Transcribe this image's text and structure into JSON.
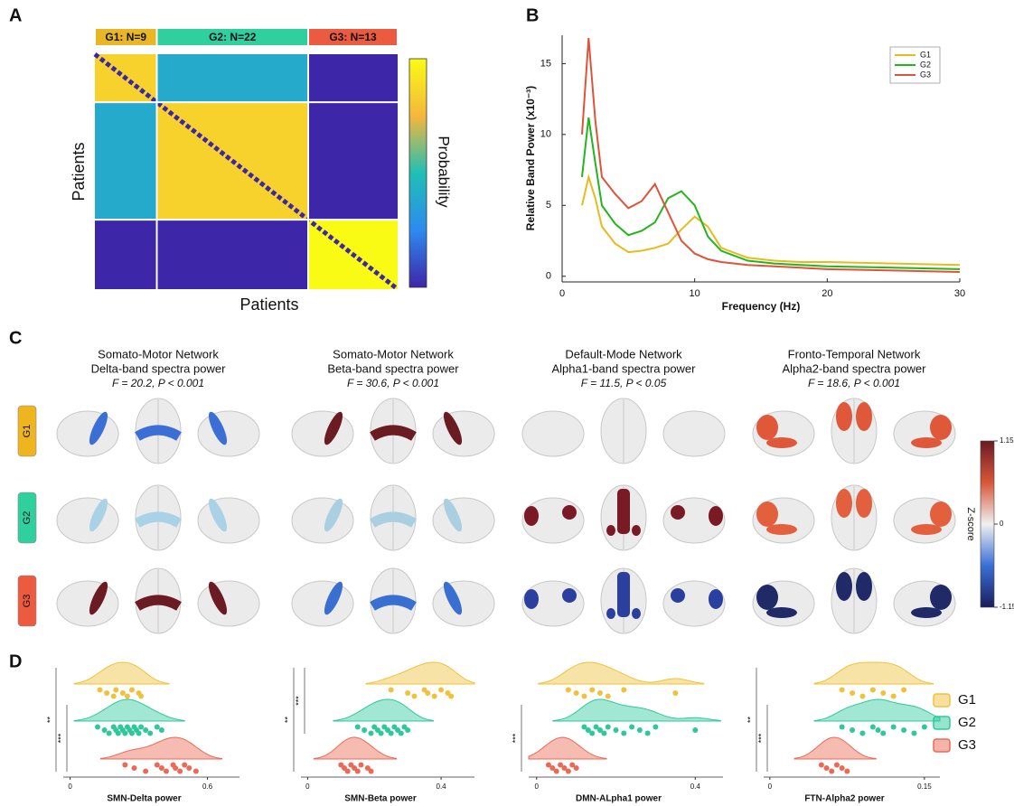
{
  "panel_labels": [
    "A",
    "B",
    "C",
    "D"
  ],
  "chart_data": [
    {
      "type": "heatmap",
      "groups": [
        {
          "label": "G1: N=9",
          "size": 9,
          "color": "#e9b726"
        },
        {
          "label": "G2: N=22",
          "size": 22,
          "color": "#2fcf9e"
        },
        {
          "label": "G3: N=13",
          "size": 13,
          "color": "#ec5a40"
        }
      ],
      "matrix": [
        [
          0.85,
          0.4,
          0
        ],
        [
          0.4,
          0.85,
          0
        ],
        [
          0,
          0,
          1
        ]
      ],
      "colormap": [
        "#3e26a8",
        "#2d8bef",
        "#20bfb5",
        "#f5b73b",
        "#f9fb15"
      ],
      "x_label": "Patients",
      "y_label": "Patients",
      "colorbar_label": "Probability"
    },
    {
      "type": "line",
      "x": [
        1.5,
        2,
        2.5,
        3,
        4,
        5,
        6,
        7,
        8,
        9,
        10,
        11,
        12,
        14,
        16,
        18,
        20,
        25,
        30
      ],
      "series": [
        {
          "name": "G1",
          "color": "#e6bb1e",
          "values": [
            5.0,
            7.0,
            5.5,
            3.5,
            2.3,
            1.7,
            1.8,
            2.0,
            2.3,
            3.3,
            4.2,
            3.5,
            2.0,
            1.3,
            1.1,
            1.0,
            1.0,
            0.9,
            0.8
          ]
        },
        {
          "name": "G2",
          "color": "#22b51f",
          "values": [
            7.0,
            11.2,
            8.0,
            5.0,
            3.7,
            2.9,
            3.2,
            3.8,
            5.5,
            6.0,
            5.0,
            2.8,
            1.8,
            1.1,
            0.9,
            0.8,
            0.7,
            0.6,
            0.5
          ]
        },
        {
          "name": "G3",
          "color": "#e0533a",
          "values": [
            10.0,
            16.8,
            11.0,
            7.0,
            5.8,
            4.8,
            5.3,
            6.5,
            4.5,
            2.5,
            1.6,
            1.2,
            1.0,
            0.8,
            0.7,
            0.6,
            0.5,
            0.4,
            0.3
          ]
        }
      ],
      "xlim": [
        0,
        30
      ],
      "xticks": [
        0,
        10,
        20,
        30
      ],
      "ylim": [
        -0.4,
        17
      ],
      "yticks": [
        0,
        5,
        10,
        15
      ],
      "x_label": "Frequency (Hz)",
      "y_label": "Relative Band Power (x10⁻³)",
      "legend": "upper right"
    },
    {
      "type": "brain_maps",
      "rows": [
        {
          "label": "G1",
          "color": "#efb51f"
        },
        {
          "label": "G2",
          "color": "#2fcf9e"
        },
        {
          "label": "G3",
          "color": "#ec5a40"
        }
      ],
      "panels": [
        {
          "title": [
            "Somato-Motor Network",
            "Delta-band spectra power"
          ],
          "stat": "F = 20.2, P < 0.001",
          "colors": [
            "#3b6fd6",
            "#a9d2e6",
            "#6b1b22"
          ]
        },
        {
          "title": [
            "Somato-Motor Network",
            "Beta-band spectra power"
          ],
          "stat": "F = 30.6, P < 0.001",
          "colors": [
            "#6b1b22",
            "#a9cfe0",
            "#3a6fd2"
          ]
        },
        {
          "title": [
            "Default-Mode Network",
            "Alpha1-band spectra power"
          ],
          "stat": "F = 11.5, P < 0.05",
          "colors": [
            null,
            "#7a1a25",
            "#2b3f9e"
          ]
        },
        {
          "title": [
            "Fronto-Temporal Network",
            "Alpha2-band spectra power"
          ],
          "stat": "F = 18.6, P < 0.001",
          "colors": [
            "#e0583a",
            "#e2603e",
            "#1f2a66"
          ]
        }
      ],
      "clim": [
        -1.15,
        1.15
      ],
      "cticks": [
        -1.15,
        0,
        1.15
      ],
      "colormap": [
        "#1b1f5c",
        "#3a6fd6",
        "#f0f0f0",
        "#d8573a",
        "#6b1b22"
      ],
      "colorbar_label": "Z-score"
    },
    {
      "type": "raincloud",
      "legend": [
        {
          "name": "G1",
          "color": "#f0c23b"
        },
        {
          "name": "G2",
          "color": "#2ec99b"
        },
        {
          "name": "G3",
          "color": "#ec6a55"
        }
      ],
      "panels": [
        {
          "x_label": "SMN-Delta power",
          "xlim": [
            -0.03,
            0.74
          ],
          "xticks": [
            0,
            0.6
          ],
          "groups": [
            [
              0.13,
              0.16,
              0.19,
              0.2,
              0.23,
              0.25,
              0.27,
              0.3,
              0.31
            ],
            [
              0.12,
              0.15,
              0.17,
              0.19,
              0.2,
              0.21,
              0.22,
              0.23,
              0.24,
              0.25,
              0.26,
              0.27,
              0.28,
              0.29,
              0.3,
              0.31,
              0.33,
              0.35,
              0.38,
              0.4
            ],
            [
              0.24,
              0.28,
              0.33,
              0.38,
              0.4,
              0.42,
              0.45,
              0.46,
              0.48,
              0.5,
              0.52,
              0.55
            ]
          ],
          "significance": [
            {
              "label": "**",
              "from": 0,
              "to": 2
            },
            {
              "label": "***",
              "from": 1,
              "to": 2
            }
          ]
        },
        {
          "x_label": "SMN-Beta power",
          "xlim": [
            -0.02,
            0.5
          ],
          "xticks": [
            0,
            0.4
          ],
          "groups": [
            [
              0.25,
              0.3,
              0.32,
              0.35,
              0.36,
              0.38,
              0.4,
              0.42,
              0.43
            ],
            [
              0.15,
              0.17,
              0.19,
              0.2,
              0.21,
              0.22,
              0.23,
              0.24,
              0.25,
              0.26,
              0.27,
              0.28,
              0.29,
              0.3
            ],
            [
              0.1,
              0.11,
              0.12,
              0.13,
              0.14,
              0.15,
              0.16,
              0.18,
              0.19
            ]
          ],
          "significance": [
            {
              "label": "**",
              "from": 0,
              "to": 2
            },
            {
              "label": "***",
              "from": 0,
              "to": 1
            }
          ]
        },
        {
          "x_label": "DMN-ALpha1 power",
          "xlim": [
            -0.02,
            0.47
          ],
          "xticks": [
            0,
            0.4
          ],
          "groups": [
            [
              0.08,
              0.1,
              0.12,
              0.14,
              0.16,
              0.18,
              0.22,
              0.35
            ],
            [
              0.12,
              0.13,
              0.14,
              0.15,
              0.16,
              0.17,
              0.18,
              0.2,
              0.22,
              0.24,
              0.26,
              0.28,
              0.3,
              0.4
            ],
            [
              0.03,
              0.04,
              0.05,
              0.06,
              0.07,
              0.08,
              0.09,
              0.1
            ]
          ],
          "significance": [
            {
              "label": "***",
              "from": 1,
              "to": 2
            }
          ]
        },
        {
          "x_label": "FTN-Alpha2 power",
          "xlim": [
            -0.006,
            0.165
          ],
          "xticks": [
            0,
            0.15
          ],
          "groups": [
            [
              0.07,
              0.08,
              0.09,
              0.1,
              0.11,
              0.12,
              0.13
            ],
            [
              0.07,
              0.08,
              0.09,
              0.1,
              0.105,
              0.11,
              0.12,
              0.13,
              0.14,
              0.15
            ],
            [
              0.05,
              0.055,
              0.06,
              0.065,
              0.07,
              0.075
            ]
          ],
          "significance": [
            {
              "label": "**",
              "from": 0,
              "to": 2
            },
            {
              "label": "***",
              "from": 1,
              "to": 2
            }
          ]
        }
      ]
    }
  ]
}
